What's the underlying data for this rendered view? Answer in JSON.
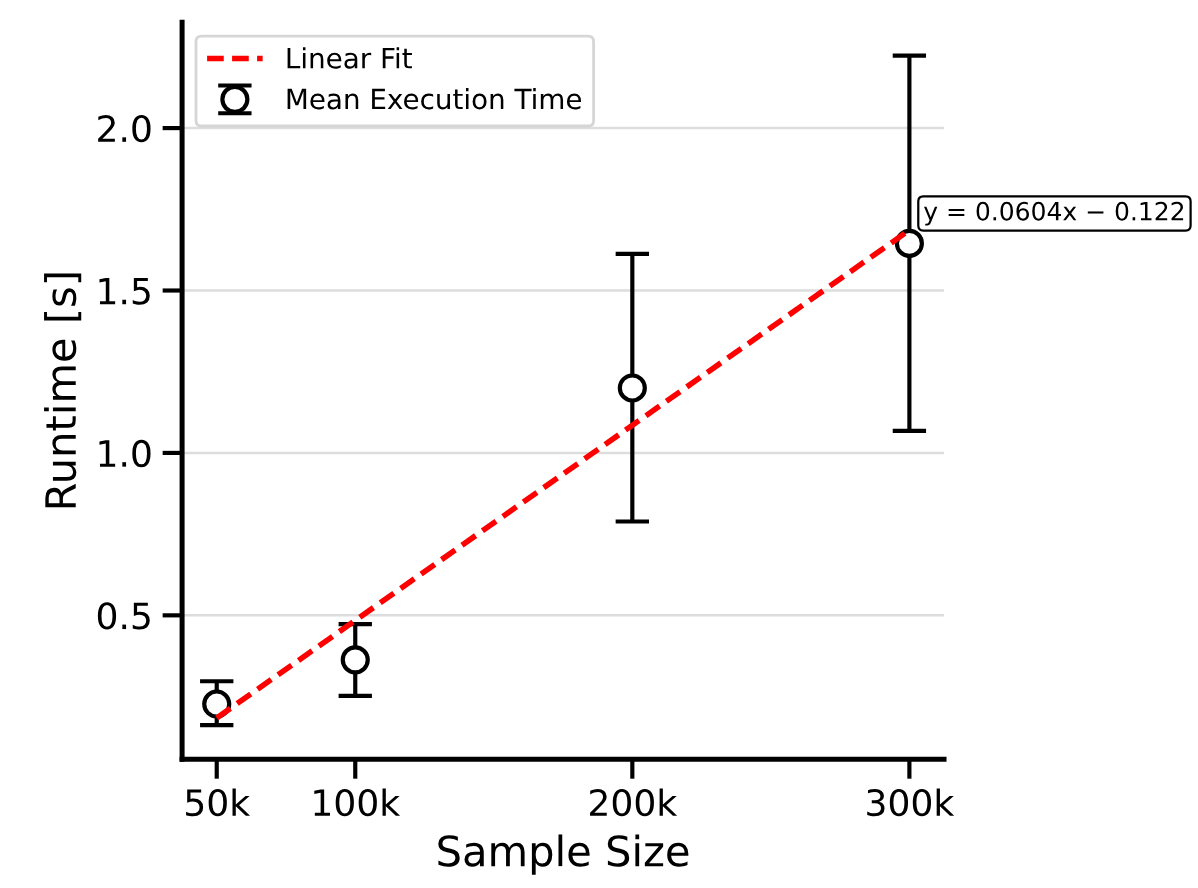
{
  "chart_data": {
    "type": "scatter",
    "xlabel": "Sample Size",
    "ylabel": "Runtime [s]",
    "x": [
      50000,
      100000,
      200000,
      300000
    ],
    "series": [
      {
        "name": "Linear Fit",
        "type": "line",
        "color": "#ff0000",
        "line_style": "dashed",
        "marker": "none",
        "x": [
          50000,
          300000
        ],
        "values": [
          0.184,
          1.686
        ]
      },
      {
        "name": "Mean Execution Time",
        "color": "#000000",
        "marker": "circle",
        "values": [
          0.227,
          0.363,
          1.2,
          1.645
        ],
        "errors": [
          [
            0.162,
            0.297
          ],
          [
            0.252,
            0.473
          ],
          [
            0.789,
            1.613
          ],
          [
            1.068,
            2.223
          ]
        ]
      }
    ],
    "annotations": [
      {
        "text": "y = 0.0604x − 0.122",
        "x": 300000,
        "y": 1.686
      }
    ],
    "xlim": [
      37500,
      312500
    ],
    "ylim": [
      0.057,
      2.326
    ],
    "xticks": [
      {
        "value": 50000,
        "label": "50k"
      },
      {
        "value": 100000,
        "label": "100k"
      },
      {
        "value": 200000,
        "label": "200k"
      },
      {
        "value": 300000,
        "label": "300k"
      }
    ],
    "yticks": [
      {
        "value": 0.5,
        "label": "0.5"
      },
      {
        "value": 1.0,
        "label": "1.0"
      },
      {
        "value": 1.5,
        "label": "1.5"
      },
      {
        "value": 2.0,
        "label": "2.0"
      }
    ],
    "grid": "y",
    "legend": "top left"
  }
}
